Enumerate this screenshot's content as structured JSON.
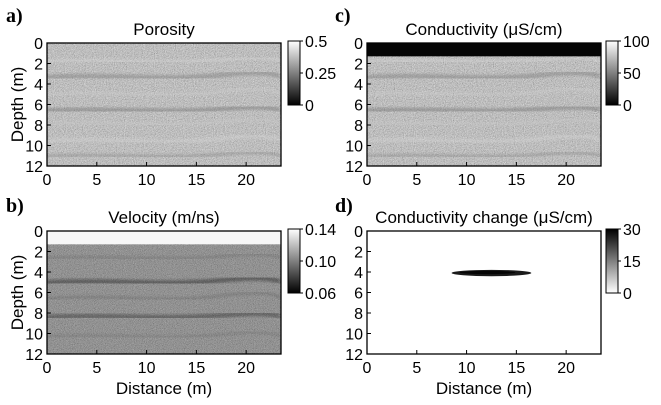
{
  "figure": {
    "panels": [
      {
        "id": "a",
        "label": "a)",
        "title": "Porosity",
        "field": "texture",
        "ylabel": "Depth (m)",
        "xlabel": "",
        "x_ticks": [
          "0",
          "5",
          "10",
          "15",
          "20"
        ],
        "y_ticks": [
          "0",
          "2",
          "4",
          "6",
          "8",
          "10",
          "12"
        ],
        "colorbar": {
          "ticks": [
            "0.5",
            "0.25",
            "0"
          ],
          "range": [
            0,
            0.5
          ],
          "colormap": "gray"
        }
      },
      {
        "id": "c",
        "label": "c)",
        "title": "Conductivity (μS/cm)",
        "field": "texture-with-top-layer",
        "ylabel": "",
        "xlabel": "",
        "x_ticks": [
          "0",
          "5",
          "10",
          "15",
          "20"
        ],
        "y_ticks": [
          "0",
          "2",
          "4",
          "6",
          "8",
          "10",
          "12"
        ],
        "colorbar": {
          "ticks": [
            "100",
            "50",
            "0"
          ],
          "range": [
            0,
            100
          ],
          "colormap": "gray"
        }
      },
      {
        "id": "b",
        "label": "b)",
        "title": "Velocity (m/ns)",
        "field": "dark-texture-with-top-layer",
        "ylabel": "Depth (m)",
        "xlabel": "Distance (m)",
        "x_ticks": [
          "0",
          "5",
          "10",
          "15",
          "20"
        ],
        "y_ticks": [
          "0",
          "2",
          "4",
          "6",
          "8",
          "10",
          "12"
        ],
        "colorbar": {
          "ticks": [
            "0.14",
            "0.10",
            "0.06"
          ],
          "range": [
            0.06,
            0.14
          ],
          "colormap": "gray"
        }
      },
      {
        "id": "d",
        "label": "d)",
        "title": "Conductivity change (μS/cm)",
        "field": "anomaly",
        "ylabel": "",
        "xlabel": "Distance (m)",
        "x_ticks": [
          "0",
          "5",
          "10",
          "15",
          "20"
        ],
        "y_ticks": [
          "0",
          "2",
          "4",
          "6",
          "8",
          "10",
          "12"
        ],
        "colorbar": {
          "ticks": [
            "30",
            "15",
            "0"
          ],
          "range": [
            0,
            30
          ],
          "colormap": "gray-reversed"
        }
      }
    ]
  }
}
